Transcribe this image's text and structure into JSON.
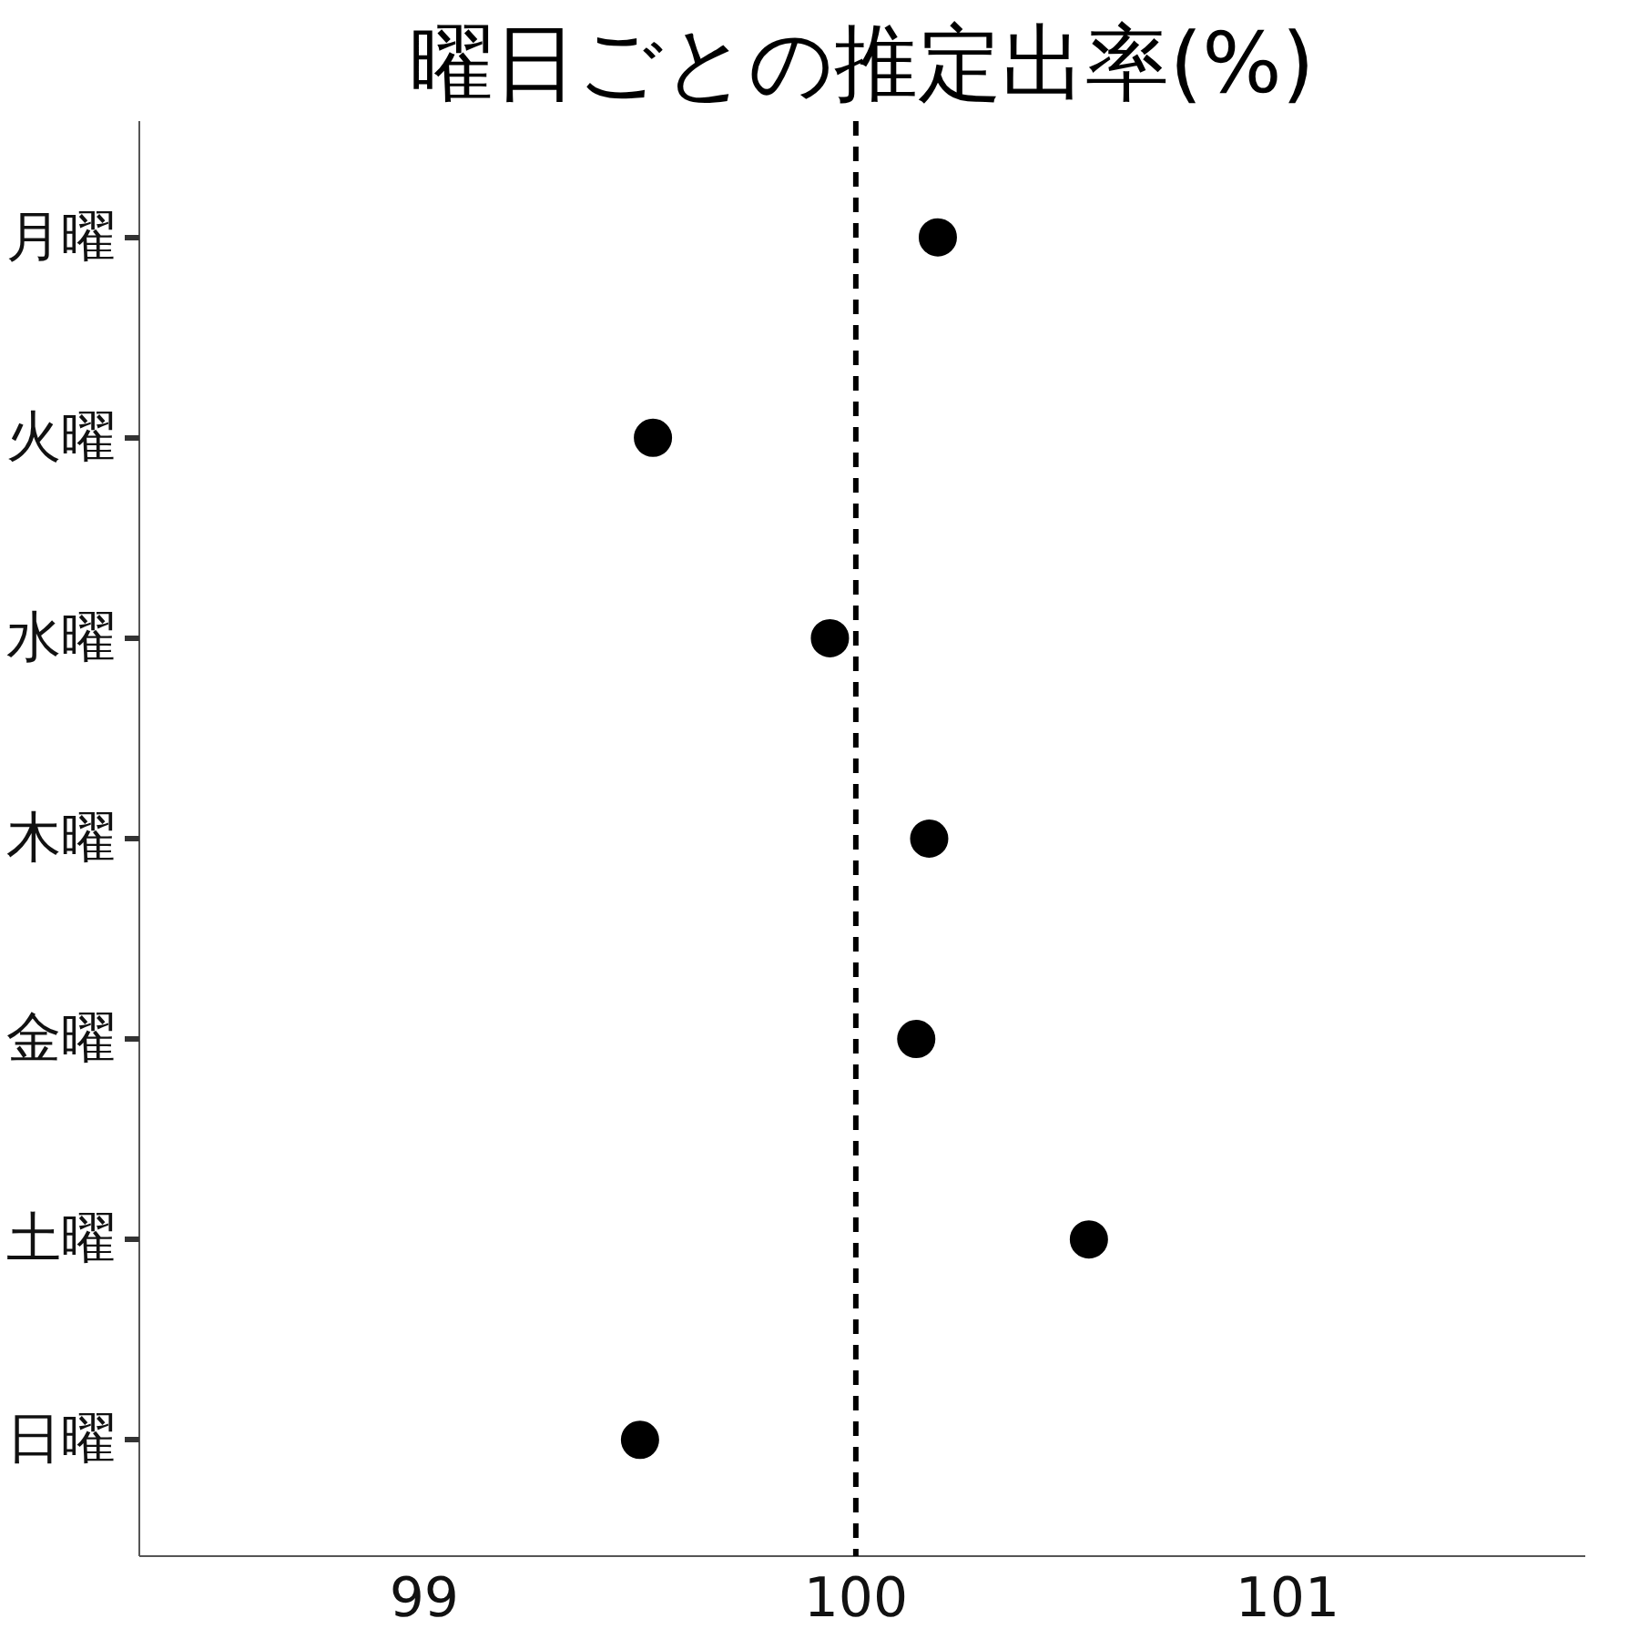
{
  "chart_data": {
    "type": "scatter",
    "title": "曜日ごとの推定出率(%)",
    "orientation": "horizontal",
    "categories": [
      "月曜",
      "火曜",
      "水曜",
      "木曜",
      "金曜",
      "土曜",
      "日曜"
    ],
    "values": [
      100.19,
      99.53,
      99.94,
      100.17,
      100.14,
      100.54,
      99.5
    ],
    "color": "#000000",
    "marker": "circle",
    "xlim": [
      98.34,
      101.69
    ],
    "xticks": [
      99,
      100,
      101
    ],
    "ref_lines": [
      {
        "axis": "x",
        "value": 100,
        "color": "#000000",
        "line_style": "dashed"
      }
    ],
    "grid": false
  }
}
